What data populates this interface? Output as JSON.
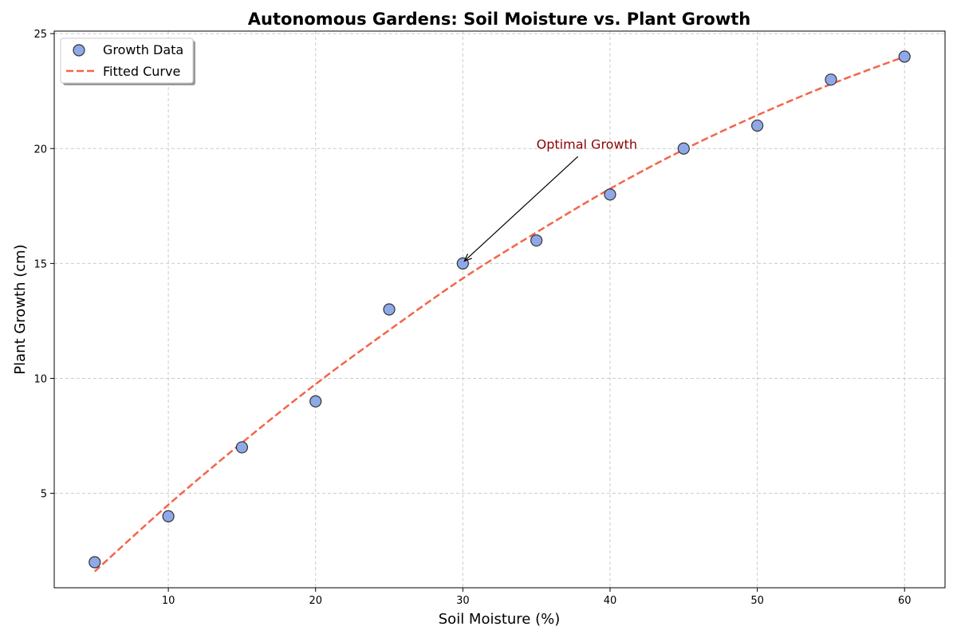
{
  "chart_data": {
    "type": "scatter",
    "title": "Autonomous Gardens: Soil Moisture vs. Plant Growth",
    "xlabel": "Soil Moisture (%)",
    "ylabel": "Plant Growth (cm)",
    "xlim": [
      2.25,
      62.75
    ],
    "ylim": [
      0.89,
      25.11
    ],
    "xticks": [
      10,
      20,
      30,
      40,
      50,
      60
    ],
    "yticks": [
      5,
      10,
      15,
      20,
      25
    ],
    "grid": true,
    "legend_position": "top-left",
    "series": [
      {
        "name": "Growth Data",
        "kind": "scatter",
        "color": "#8fa8e8",
        "edge_color": "#333333",
        "points": [
          {
            "x": 5,
            "y": 2
          },
          {
            "x": 10,
            "y": 4
          },
          {
            "x": 15,
            "y": 7
          },
          {
            "x": 20,
            "y": 9
          },
          {
            "x": 25,
            "y": 13
          },
          {
            "x": 30,
            "y": 15
          },
          {
            "x": 35,
            "y": 16
          },
          {
            "x": 40,
            "y": 18
          },
          {
            "x": 45,
            "y": 20
          },
          {
            "x": 50,
            "y": 21
          },
          {
            "x": 55,
            "y": 23
          },
          {
            "x": 60,
            "y": 24
          }
        ]
      },
      {
        "name": "Fitted Curve",
        "kind": "line",
        "style": "dashed",
        "color": "#f4654a",
        "points": [
          {
            "x": 5,
            "y": 1.6
          },
          {
            "x": 10,
            "y": 4.5
          },
          {
            "x": 15,
            "y": 7.2
          },
          {
            "x": 20,
            "y": 9.75
          },
          {
            "x": 25,
            "y": 12.1
          },
          {
            "x": 30,
            "y": 14.35
          },
          {
            "x": 35,
            "y": 16.35
          },
          {
            "x": 40,
            "y": 18.25
          },
          {
            "x": 45,
            "y": 19.95
          },
          {
            "x": 50,
            "y": 21.45
          },
          {
            "x": 55,
            "y": 22.8
          },
          {
            "x": 60,
            "y": 24.0
          }
        ]
      }
    ],
    "annotations": [
      {
        "text": "Optimal Growth",
        "xy": {
          "x": 30,
          "y": 15
        },
        "xytext": {
          "x": 35,
          "y": 20
        },
        "color": "#8b0000"
      }
    ]
  }
}
